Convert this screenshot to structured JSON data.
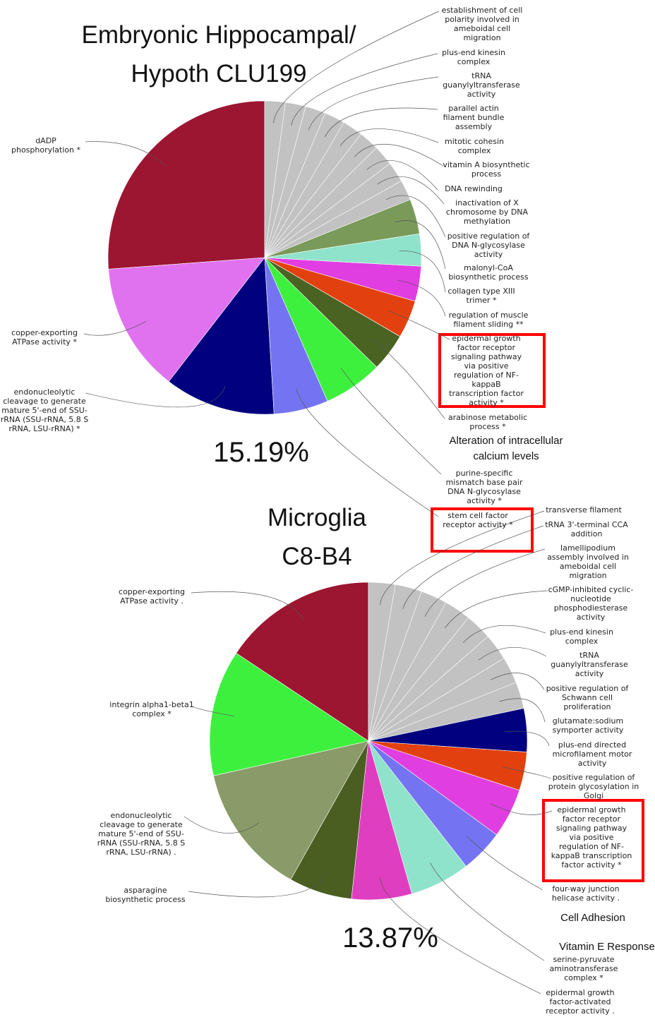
{
  "chart_data": [
    {
      "type": "pie",
      "title": "Embryonic Hippocampal/ Hypoth CLU199",
      "categories": [
        "establishment of cell polarity involved in ameboidal cell migration",
        "plus-end kinesin complex",
        "tRNA guanylyltransferase activity",
        "parallel actin filament bundle assembly",
        "mitotic cohesin complex",
        "vitamin A biosynthetic process",
        "DNA rewinding",
        "inactivation of X chromosome by DNA methylation",
        "positive regulation of DNA N-glycosylase activity",
        "malonyl-CoA biosynthetic process",
        "collagen type XIII trimer *",
        "regulation of muscle filament sliding **",
        "epidermal growth factor receptor signaling pathway via positive regulation of NF-kappaB transcription factor activity *",
        "arabinose metabolic process *",
        "purine-specific mismatch base pair DNA N-glycosylase activity *",
        "stem cell factor receptor activity *",
        "endonucleolytic cleavage to generate mature 5'-end of SSU-rRNA (SSU-rRNA, 5.8 S rRNA, LSU-rRNA) *",
        "copper-exporting ATPase activity *",
        "dADP phosphorylation *"
      ],
      "values": [
        2.1,
        2.1,
        2.1,
        2.1,
        2.1,
        2.1,
        2.1,
        2.1,
        2.1,
        3.6,
        3.3,
        3.6,
        3.9,
        3.9,
        6.1,
        5.6,
        11.4,
        13.3,
        26.1
      ],
      "colors": [
        "#c2c2c2",
        "#c2c2c2",
        "#c2c2c2",
        "#c2c2c2",
        "#c2c2c2",
        "#c2c2c2",
        "#c2c2c2",
        "#c2c2c2",
        "#c2c2c2",
        "#7a9a5a",
        "#8fe3cb",
        "#e03ee0",
        "#e2410f",
        "#4a6322",
        "#3ef03e",
        "#7474f2",
        "#01007e",
        "#e072f0",
        "#9c1531"
      ],
      "annotations": [
        "15.19%",
        "Alteration of intracellular calcium levels"
      ]
    },
    {
      "type": "pie",
      "title": "Microglia C8-B4",
      "categories": [
        "transverse filament",
        "tRNA 3'-terminal CCA addition",
        "lamellipodium assembly involved in ameboidal cell migration",
        "cGMP-inhibited cyclic-nucleotide phosphodiesterase activity",
        "plus-end kinesin complex",
        "tRNA guanylyltransferase activity",
        "positive regulation of Schwann cell proliferation",
        "glutamate:sodium symporter activity",
        "plus-end directed microfilament motor activity",
        "positive regulation of protein glycosylation in Golgi",
        "epidermal growth factor receptor signaling pathway via positive regulation of NF-kappaB transcription factor activity *",
        "four-way junction helicase activity .",
        "serine-pyruvate aminotransferase complex *",
        "epidermal growth factor-activated receptor activity .",
        "asparagine biosynthetic process",
        "endonucleolytic cleavage to generate mature 5'-end of SSU-rRNA (SSU-rRNA, 5.8 S rRNA, LSU-rRNA) .",
        "integrin alpha1-beta1 complex *",
        "copper-exporting ATPase activity ."
      ],
      "values": [
        2.7,
        2.7,
        2.7,
        2.7,
        2.7,
        2.7,
        2.7,
        2.7,
        4.4,
        3.9,
        5.0,
        4.4,
        6.1,
        6.1,
        6.4,
        13.3,
        12.8,
        15.6
      ],
      "colors": [
        "#c2c2c2",
        "#c2c2c2",
        "#c2c2c2",
        "#c2c2c2",
        "#c2c2c2",
        "#c2c2c2",
        "#c2c2c2",
        "#c2c2c2",
        "#01007e",
        "#e2410f",
        "#e03ee0",
        "#7474f2",
        "#8fe3cb",
        "#e03ec0",
        "#4a5e22",
        "#8a9a68",
        "#3ef03e",
        "#9c1531"
      ],
      "annotations": [
        "13.87%",
        "Cell Adhesion",
        "Vitamin E Response"
      ]
    }
  ]
}
